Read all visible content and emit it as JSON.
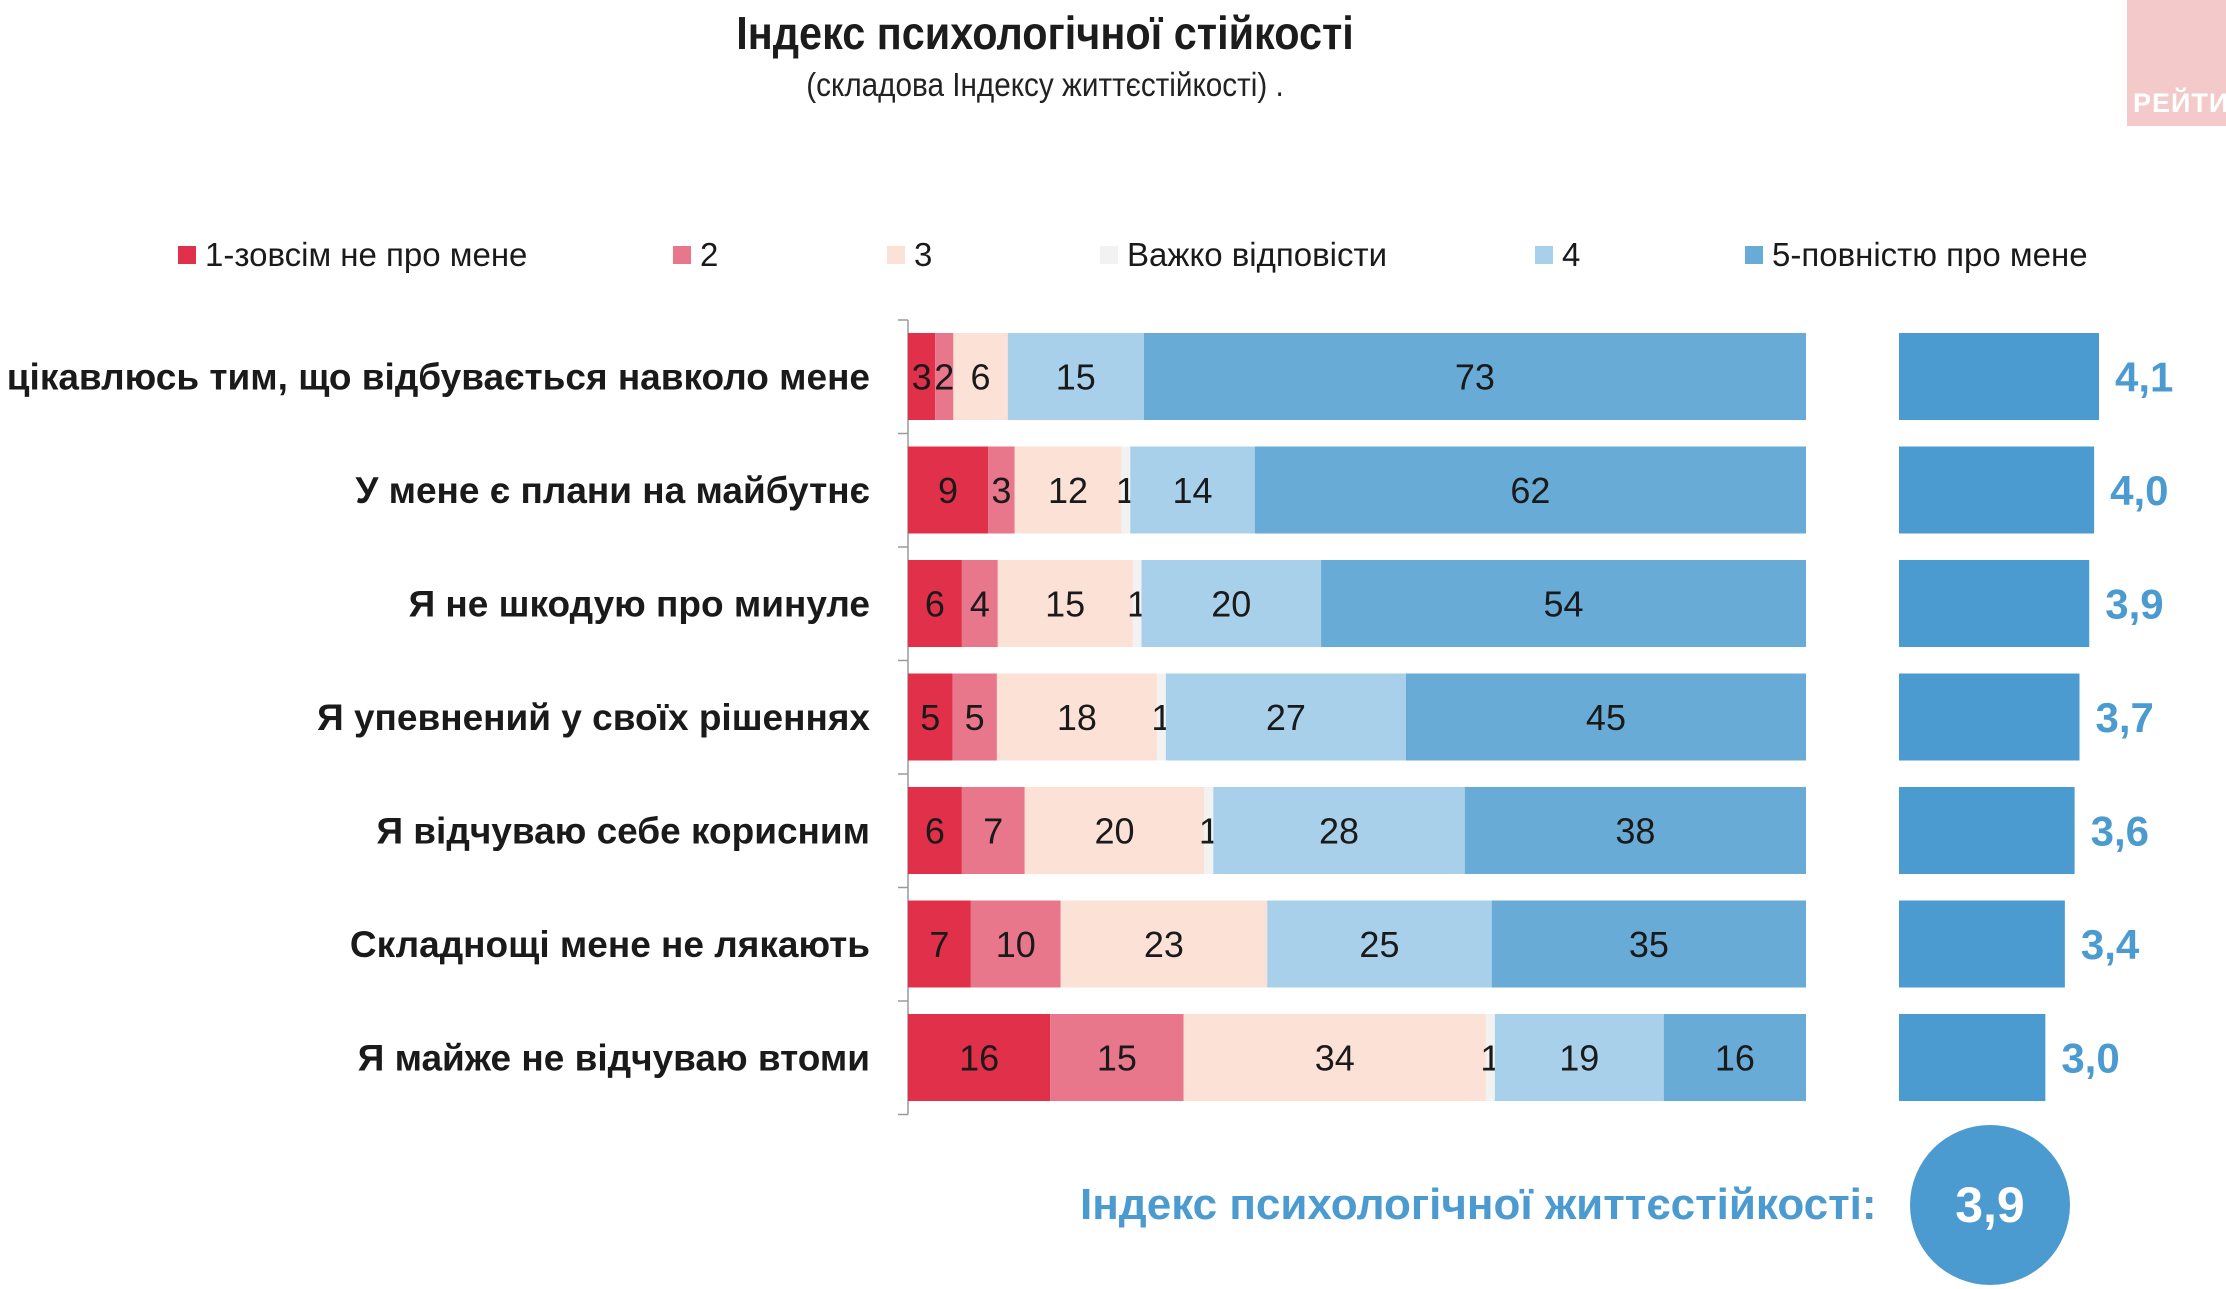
{
  "header": {
    "title": "Індекс психологічної стійкості",
    "subtitle": "(складова Індексу життєстійкості) ."
  },
  "logo": {
    "text": "РЕЙТИ"
  },
  "index": {
    "label": "Індекс психологічної життєстійкості:",
    "value": "3,9"
  },
  "chart_data": {
    "type": "bar",
    "orientation": "horizontal",
    "stacked": true,
    "percent_stacked": true,
    "legend_position": "top",
    "categories": [
      "Я цікавлюсь тим, що відбувається навколо мене",
      "У мене є плани на майбутнє",
      "Я не шкодую про минуле",
      "Я упевнений у своїх рішеннях",
      "Я відчуваю себе корисним",
      "Складнощі мене не лякають",
      "Я майже не відчуваю втоми"
    ],
    "series": [
      {
        "name": "1-зовсім не про мене",
        "color": "#e0304a",
        "values": [
          3,
          9,
          6,
          5,
          6,
          7,
          16
        ]
      },
      {
        "name": "2",
        "color": "#e8778c",
        "values": [
          2,
          3,
          4,
          5,
          7,
          10,
          15
        ]
      },
      {
        "name": "3",
        "color": "#fce2d6",
        "values": [
          6,
          12,
          15,
          18,
          20,
          23,
          34
        ]
      },
      {
        "name": "Важко відповісти",
        "color": "#f2f2f2",
        "values": [
          0,
          1,
          1,
          1,
          1,
          0,
          1
        ]
      },
      {
        "name": "4",
        "color": "#a8d0ea",
        "values": [
          15,
          14,
          20,
          27,
          28,
          25,
          19
        ]
      },
      {
        "name": "5-повністю про мене",
        "color": "#67abd6",
        "values": [
          73,
          62,
          54,
          45,
          38,
          35,
          16
        ]
      }
    ],
    "means": {
      "values": [
        4.1,
        4.0,
        3.9,
        3.7,
        3.6,
        3.4,
        3.0
      ],
      "labels": [
        "4,1",
        "4,0",
        "3,9",
        "3,7",
        "3,6",
        "3,4",
        "3,0"
      ],
      "color": "#4b9ad0"
    }
  }
}
